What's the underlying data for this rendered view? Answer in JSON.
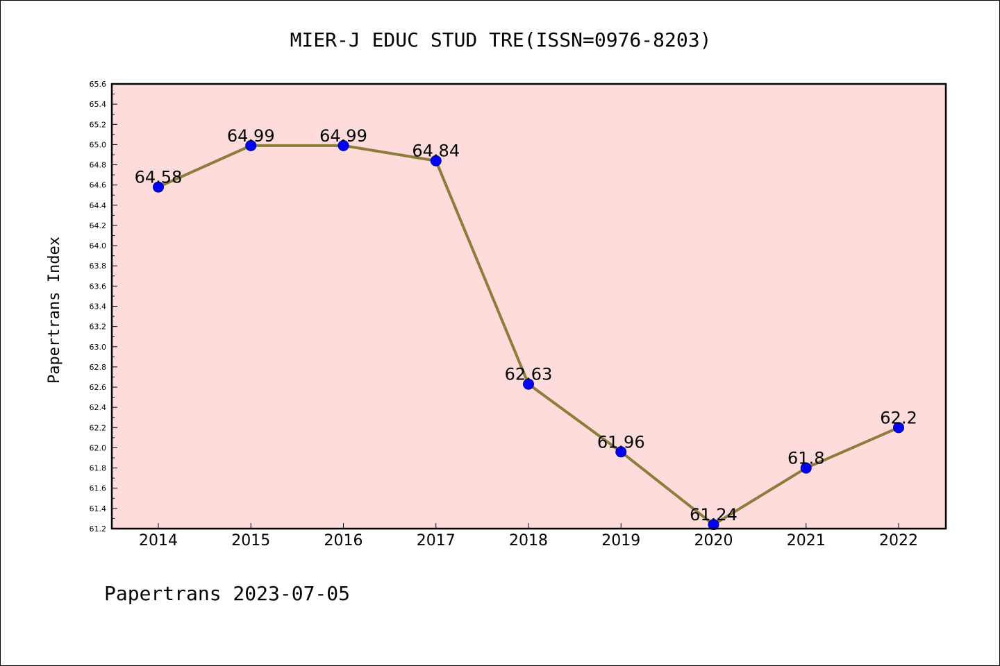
{
  "chart_data": {
    "type": "line",
    "title": "MIER-J EDUC STUD TRE(ISSN=0976-8203)",
    "ylabel": "Papertrans Index",
    "xlabel": "",
    "categories": [
      "2014",
      "2015",
      "2016",
      "2017",
      "2018",
      "2019",
      "2020",
      "2021",
      "2022"
    ],
    "series": [
      {
        "values": [
          64.58,
          64.99,
          64.99,
          64.84,
          62.63,
          61.96,
          61.24,
          61.8,
          62.2
        ],
        "data_labels": [
          "64.58",
          "64.99",
          "64.99",
          "64.84",
          "62.63",
          "61.96",
          "61.24",
          "61.8",
          "62.2"
        ],
        "line_color": "#8b7d3a",
        "marker_color": "#0000ff"
      }
    ],
    "ylim": [
      61.2,
      65.6
    ],
    "yticks": [
      "61.2",
      "61.4",
      "61.6",
      "61.8",
      "62.0",
      "62.2",
      "62.4",
      "62.6",
      "62.8",
      "63.0",
      "63.2",
      "63.4",
      "63.6",
      "63.8",
      "64.0",
      "64.2",
      "64.4",
      "64.6",
      "64.8",
      "65.0",
      "65.2",
      "65.4",
      "65.6"
    ],
    "plot_background": "#ffdcdc",
    "grid": false,
    "legend": "none"
  },
  "footer": "Papertrans 2023-07-05"
}
